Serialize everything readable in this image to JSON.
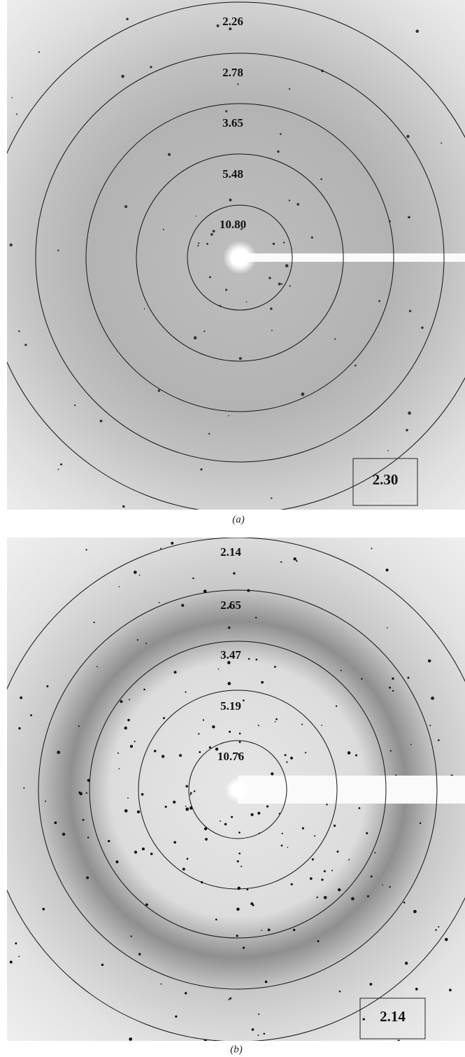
{
  "panels": [
    {
      "ring_labels": [
        "2.26",
        "2.78",
        "3.65",
        "5.48",
        "10.80"
      ],
      "box_label": "2.30",
      "caption": "(a)"
    },
    {
      "ring_labels": [
        "2.14",
        "2.65",
        "3.47",
        "5.19",
        "10.76"
      ],
      "box_label": "2.14",
      "caption": "(b)"
    }
  ]
}
